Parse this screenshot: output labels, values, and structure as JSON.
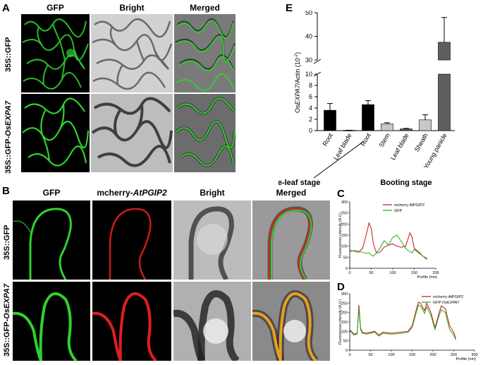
{
  "panel_a": {
    "letter": "A",
    "columns": [
      "GFP",
      "Bright",
      "Merged"
    ],
    "rows": [
      {
        "prefix": "35S::GFP",
        "italic": ""
      },
      {
        "prefix": "35S::GFP-",
        "italic": "OsEXPA7"
      }
    ]
  },
  "panel_b": {
    "letter": "B",
    "columns": [
      {
        "prefix": "GFP",
        "italic": ""
      },
      {
        "prefix": "mcherry-",
        "italic": "AtPGIP2"
      },
      {
        "prefix": "Bright",
        "italic": ""
      },
      {
        "prefix": "Merged",
        "italic": ""
      }
    ],
    "rows": [
      {
        "prefix": "35S::GFP",
        "italic": ""
      },
      {
        "prefix": "35S::GFP-",
        "italic": "OsEXPA7"
      }
    ]
  },
  "colors": {
    "gfp": "#2fd12f",
    "mcherry": "#e01e1e",
    "bar_dark": "#000000",
    "bar_light": "#c8c8c8",
    "bar_gray": "#5f5f5f",
    "line_red": "#cc1111",
    "line_green": "#22aa22"
  },
  "chart_data": [
    {
      "panel": "E",
      "type": "bar",
      "ylabel_prefix": "Os",
      "ylabel_italic": "EXPA7",
      "ylabel_suffix": "/Actin (10",
      "ylabel_sup": "-2",
      "ylabel_end": ")",
      "axis_break": true,
      "ylim_lower": [
        0,
        10
      ],
      "ylim_upper": [
        30,
        50
      ],
      "yticks": [
        "0",
        "2",
        "4",
        "6",
        "8",
        "10",
        "30",
        "40",
        "50"
      ],
      "categories": [
        "Root",
        "Leaf blade",
        "Root",
        "Stem",
        "Leaf blade",
        "Sheath",
        "Young panicle"
      ],
      "values": [
        3.6,
        0.05,
        4.6,
        1.2,
        0.3,
        1.9,
        37.5
      ],
      "errors": [
        1.2,
        0.02,
        0.7,
        0.2,
        0.1,
        0.9,
        10.5
      ],
      "bar_colors": [
        "bar_dark",
        "bar_dark",
        "bar_dark",
        "bar_light",
        "bar_gray",
        "bar_light",
        "bar_gray"
      ],
      "groups": [
        {
          "label": "Three-leaf stage",
          "span": [
            0,
            1
          ]
        },
        {
          "label": "Booting stage",
          "span": [
            2,
            6
          ]
        }
      ]
    },
    {
      "panel": "C",
      "type": "line",
      "xlabel": "Profile (nm)",
      "ylabel": "Fluorescence intensity (A.U.)",
      "xlim": [
        0,
        200
      ],
      "ylim": [
        0,
        300
      ],
      "xticks": [
        "0",
        "50",
        "100",
        "150",
        "200"
      ],
      "yticks": [
        "0",
        "50",
        "100",
        "150",
        "200",
        "250",
        "300"
      ],
      "x": [
        0,
        10,
        20,
        30,
        38,
        45,
        50,
        55,
        62,
        70,
        80,
        90,
        100,
        110,
        120,
        130,
        140,
        145,
        150,
        160,
        170,
        180
      ],
      "series": [
        {
          "name": "mcherry-AtPGIP2",
          "color": "line_red",
          "values": [
            80,
            78,
            72,
            90,
            150,
            205,
            180,
            110,
            70,
            72,
            95,
            105,
            110,
            100,
            95,
            100,
            160,
            140,
            90,
            75,
            55,
            40
          ]
        },
        {
          "name": "GFP",
          "color": "line_green",
          "values": [
            75,
            80,
            78,
            72,
            68,
            70,
            60,
            55,
            70,
            90,
            125,
            105,
            140,
            150,
            120,
            90,
            75,
            70,
            85,
            70,
            55,
            45
          ]
        }
      ]
    },
    {
      "panel": "D",
      "type": "line",
      "xlabel": "Profile (nm)",
      "ylabel": "Fluorescence intensity (A.U.)",
      "xlim": [
        0,
        300
      ],
      "ylim": [
        0,
        300
      ],
      "xticks": [
        "0",
        "50",
        "100",
        "150",
        "200",
        "250",
        "300"
      ],
      "yticks": [
        "0",
        "50",
        "100",
        "150",
        "200",
        "250",
        "300"
      ],
      "x": [
        0,
        10,
        18,
        22,
        26,
        30,
        40,
        60,
        70,
        80,
        100,
        120,
        140,
        150,
        160,
        165,
        170,
        180,
        185,
        195,
        205,
        215,
        220,
        230,
        240,
        250,
        255
      ],
      "series": [
        {
          "name": "mcherry-AtPGIP2",
          "color": "line_red",
          "values": [
            110,
            85,
            90,
            240,
            120,
            95,
            90,
            100,
            80,
            95,
            90,
            95,
            100,
            130,
            215,
            255,
            250,
            210,
            250,
            200,
            120,
            200,
            235,
            220,
            130,
            95,
            60
          ]
        },
        {
          "name": "GFP-OsEXPA7",
          "color": "line_green",
          "values": [
            105,
            80,
            85,
            220,
            110,
            90,
            85,
            95,
            75,
            90,
            85,
            88,
            95,
            120,
            200,
            240,
            235,
            195,
            230,
            185,
            110,
            185,
            215,
            200,
            110,
            80,
            55
          ]
        }
      ]
    }
  ]
}
